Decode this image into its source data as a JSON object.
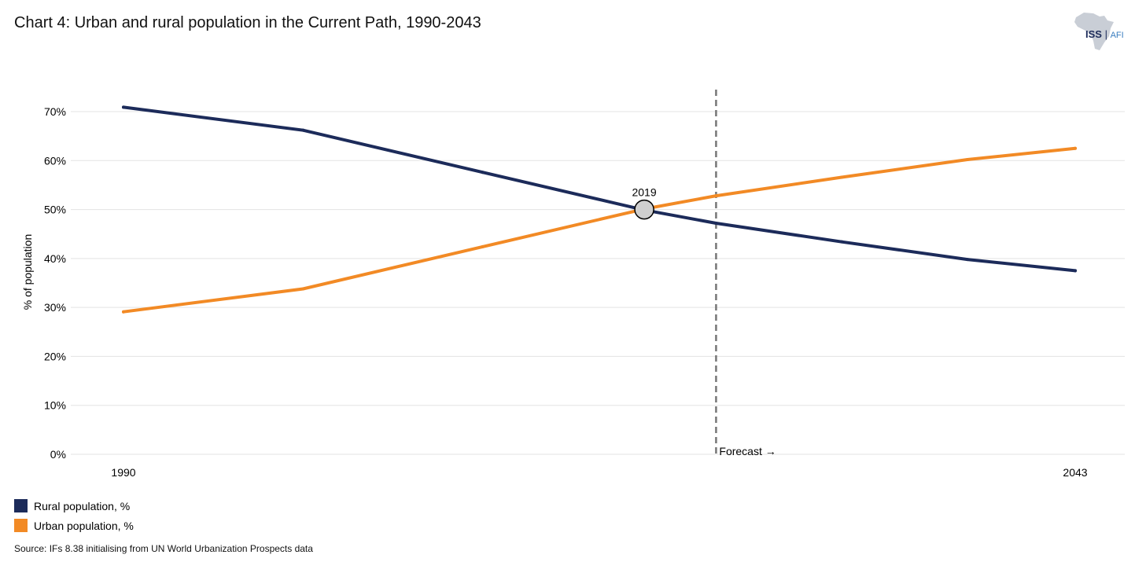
{
  "header": {
    "title": "Chart 4: Urban and rural population in the Current Path, 1990-2043"
  },
  "logo": {
    "iss": "ISS",
    "afi": "AFI"
  },
  "colors": {
    "rural": "#1c2b5a",
    "urban": "#f28a25",
    "grid": "#e3e3e3",
    "forecast": "#777777",
    "marker_fill": "#cfcfcf"
  },
  "chart_data": {
    "type": "line",
    "title": "Chart 4: Urban and rural population in the Current Path, 1990-2043",
    "xlabel": "",
    "ylabel": "% of population",
    "xlim": [
      1990,
      2043
    ],
    "ylim": [
      0,
      70
    ],
    "x_ticks": [
      1990,
      2043
    ],
    "x_tick_labels": [
      "1990",
      "2043"
    ],
    "y_ticks": [
      0,
      10,
      20,
      30,
      40,
      50,
      60,
      70
    ],
    "y_tick_labels": [
      "0%",
      "10%",
      "20%",
      "30%",
      "40%",
      "50%",
      "60%",
      "70%"
    ],
    "series": [
      {
        "name": "Rural population, %",
        "x": [
          1990,
          2000,
          2010,
          2019,
          2023,
          2030,
          2037,
          2043
        ],
        "values": [
          70.9,
          66.2,
          57.6,
          49.9,
          47.2,
          43.4,
          39.8,
          37.5
        ]
      },
      {
        "name": "Urban population, %",
        "x": [
          1990,
          2000,
          2010,
          2019,
          2023,
          2030,
          2037,
          2043
        ],
        "values": [
          29.1,
          33.8,
          42.4,
          50.1,
          52.8,
          56.6,
          60.2,
          62.5
        ]
      }
    ],
    "annotations": [
      {
        "type": "marker",
        "x": 2019,
        "y": 50,
        "label": "2019"
      },
      {
        "type": "vline",
        "x": 2023,
        "label": "Forecast →"
      }
    ],
    "grid": true,
    "legend_position": "bottom-left"
  },
  "source": "Source: IFs 8.38 initialising from UN World Urbanization Prospects data"
}
